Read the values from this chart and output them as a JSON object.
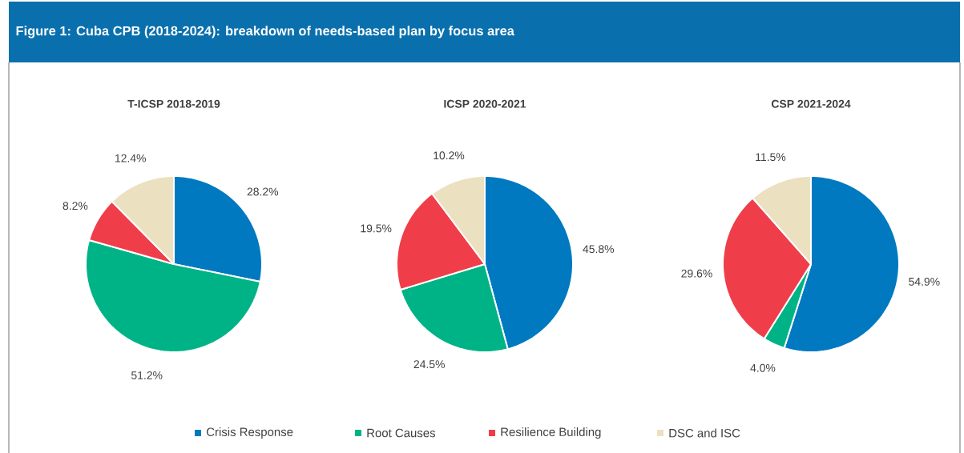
{
  "chart_data": [
    {
      "type": "pie",
      "title": "T-ICSP 2018-2019",
      "annotations": [
        "Figure 1: Cuba CPB (2018-2024): breakdown of needs-based plan by focus area"
      ],
      "categories": [
        "Crisis Response",
        "Root Causes",
        "Resilience Building",
        "DSC and ISC"
      ],
      "values": [
        28.2,
        51.2,
        8.2,
        12.4
      ],
      "colors": [
        "#0079c1",
        "#00b386",
        "#ef3e4a",
        "#ebe0c0"
      ],
      "value_labels": [
        "28.2%",
        "51.2%",
        "8.2%",
        "12.4%"
      ],
      "legend": "bottom"
    },
    {
      "type": "pie",
      "title": "ICSP 2020-2021",
      "categories": [
        null,
        null,
        null,
        null
      ],
      "values": [
        45.8,
        24.5,
        19.5,
        10.2
      ],
      "colors": [
        "#0079c1",
        "#00b386",
        "#ef3e4a",
        "#ebe0c0"
      ],
      "value_labels": [
        "45.8%",
        "24.5%",
        "19.5%",
        "10.2%"
      ]
    },
    {
      "type": "pie",
      "title": "CSP 2021-2024",
      "categories": [
        null,
        null,
        null,
        null
      ],
      "values": [
        54.9,
        4.0,
        29.6,
        11.5
      ],
      "colors": [
        "#0079c1",
        "#00b386",
        "#ef3e4a",
        "#ebe0c0"
      ],
      "value_labels": [
        "54.9%",
        "4.0%",
        "29.6%",
        "11.5%"
      ]
    }
  ]
}
